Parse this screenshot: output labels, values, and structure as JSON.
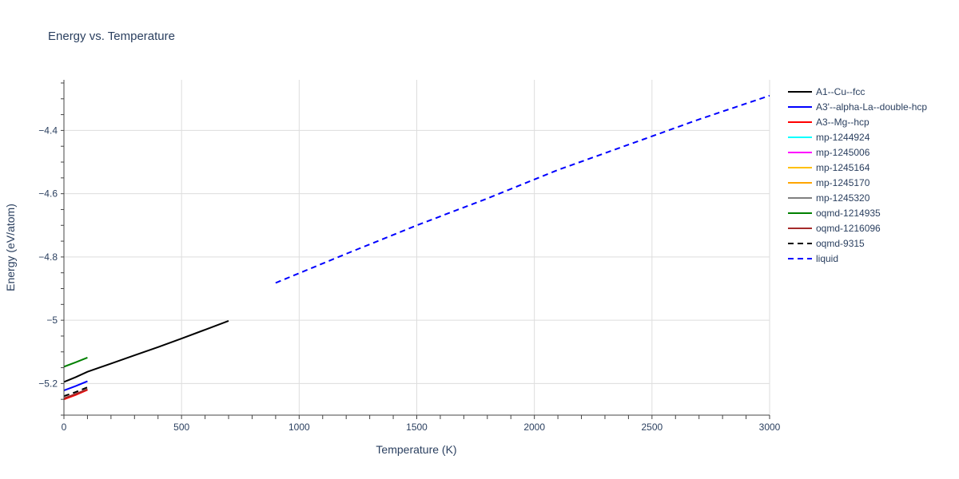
{
  "chart_data": {
    "type": "line",
    "title": "Energy vs. Temperature",
    "xlabel": "Temperature (K)",
    "ylabel": "Energy (eV/atom)",
    "xlim": [
      0,
      3000
    ],
    "ylim": [
      -5.3,
      -4.24
    ],
    "x_ticks": [
      0,
      500,
      1000,
      1500,
      2000,
      2500,
      3000
    ],
    "x_tick_labels": [
      "0",
      "500",
      "1000",
      "1500",
      "2000",
      "2500",
      "3000"
    ],
    "y_ticks": [
      -5.2,
      -5.0,
      -4.8,
      -4.6,
      -4.4
    ],
    "y_tick_labels": [
      "−5.2",
      "−5",
      "−4.8",
      "−4.6",
      "−4.4"
    ],
    "grid": true,
    "legend_position": "right",
    "series": [
      {
        "name": "A1--Cu--fcc",
        "color": "#000000",
        "dash": "solid",
        "x": [
          0,
          50,
          100,
          200,
          300,
          400,
          500,
          600,
          700
        ],
        "y": [
          -5.195,
          -5.18,
          -5.163,
          -5.137,
          -5.111,
          -5.085,
          -5.058,
          -5.03,
          -5.002
        ]
      },
      {
        "name": "A3'--alpha-La--double-hcp",
        "color": "#0000ff",
        "dash": "solid",
        "x": [
          0,
          50,
          100
        ],
        "y": [
          -5.222,
          -5.208,
          -5.193
        ]
      },
      {
        "name": "A3--Mg--hcp",
        "color": "#ff0000",
        "dash": "solid",
        "x": [
          0,
          50,
          100
        ],
        "y": [
          -5.25,
          -5.236,
          -5.22
        ]
      },
      {
        "name": "mp-1244924",
        "color": "#00ffff",
        "dash": "solid",
        "x": [],
        "y": []
      },
      {
        "name": "mp-1245006",
        "color": "#ff00ff",
        "dash": "solid",
        "x": [],
        "y": []
      },
      {
        "name": "mp-1245164",
        "color": "#ffc000",
        "dash": "solid",
        "x": [],
        "y": []
      },
      {
        "name": "mp-1245170",
        "color": "#ffa500",
        "dash": "solid",
        "x": [],
        "y": []
      },
      {
        "name": "mp-1245320",
        "color": "#808080",
        "dash": "solid",
        "x": [],
        "y": []
      },
      {
        "name": "oqmd-1214935",
        "color": "#008000",
        "dash": "solid",
        "x": [
          0,
          50,
          100
        ],
        "y": [
          -5.147,
          -5.133,
          -5.118
        ]
      },
      {
        "name": "oqmd-1216096",
        "color": "#a52a2a",
        "dash": "solid",
        "x": [
          0,
          50,
          100
        ],
        "y": [
          -5.247,
          -5.233,
          -5.218
        ]
      },
      {
        "name": "oqmd-9315",
        "color": "#000000",
        "dash": "dash",
        "x": [
          0,
          50,
          100
        ],
        "y": [
          -5.24,
          -5.227,
          -5.212
        ]
      },
      {
        "name": "liquid",
        "color": "#0000ff",
        "dash": "dash",
        "x": [
          900,
          1200,
          1500,
          1800,
          2100,
          2400,
          2700,
          3000
        ],
        "y": [
          -4.882,
          -4.79,
          -4.7,
          -4.615,
          -4.525,
          -4.445,
          -4.365,
          -4.29
        ]
      }
    ]
  }
}
